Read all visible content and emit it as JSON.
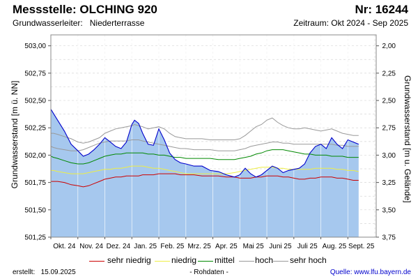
{
  "header": {
    "station": "Messstelle: OLCHING 920",
    "number": "Nr: 16244",
    "aquifer_label": "Grundwasserleiter:",
    "aquifer_value": "Niederterrasse",
    "period": "Zeitraum: Okt 2024 - Sep 2025"
  },
  "footer": {
    "created_label": "erstellt:",
    "created_date": "15.09.2025",
    "raw_data": "- Rohdaten -",
    "source_label": "Quelle:",
    "source_url": "www.lfu.bayern.de"
  },
  "colors": {
    "measured_fill": "#a6c8ee",
    "measured_line": "#0000cc",
    "sehr_niedrig": "#cc0000",
    "niedrig": "#eeee44",
    "mittel": "#008800",
    "hoch": "#999999",
    "sehr_hoch": "#999999"
  },
  "chart_data": {
    "type": "area",
    "ylabel": "Grundwasserstand [m ü. NN]",
    "ylabel_right": "Grundwasserstand [m u. Gelände]",
    "ylim": [
      501.25,
      503.1
    ],
    "yticks": [
      "503,00",
      "502,75",
      "502,50",
      "502,25",
      "502,00",
      "501,75",
      "501,50",
      "501,25"
    ],
    "yticks_values": [
      503.0,
      502.75,
      502.5,
      502.25,
      502.0,
      501.75,
      501.5,
      501.25
    ],
    "right_axis_reference": 505.0,
    "yticks_right": [
      "2,00",
      "2,25",
      "2,50",
      "2,75",
      "3,00",
      "3,25",
      "3,50",
      "3,75"
    ],
    "yticks_right_values": [
      2.0,
      2.25,
      2.5,
      2.75,
      3.0,
      3.25,
      3.5,
      3.75
    ],
    "xticks": [
      "Okt. 24",
      "Nov. 24",
      "Dez. 24",
      "Jan. 25",
      "Feb. 25",
      "Mrz. 25",
      "Apr. 25",
      "Mai 25",
      "Juni 25",
      "Juli 25",
      "Aug. 25",
      "Sept. 25"
    ],
    "grid": true,
    "legend_position": "bottom",
    "legend": [
      "sehr niedrig",
      "niedrig",
      "mittel",
      "hoch",
      "sehr hoch"
    ],
    "x": [
      0,
      0.1,
      0.25,
      0.5,
      0.75,
      1.0,
      1.2,
      1.4,
      1.6,
      1.8,
      2.0,
      2.2,
      2.4,
      2.6,
      2.8,
      3.0,
      3.1,
      3.25,
      3.4,
      3.6,
      3.8,
      4.0,
      4.2,
      4.4,
      4.6,
      4.8,
      5.0,
      5.3,
      5.6,
      5.9,
      6.2,
      6.5,
      6.8,
      7.0,
      7.2,
      7.4,
      7.6,
      7.8,
      8.0,
      8.2,
      8.4,
      8.6,
      8.8,
      9.0,
      9.2,
      9.4,
      9.6,
      9.8,
      10.0,
      10.2,
      10.4,
      10.6,
      10.8,
      11.0,
      11.2,
      11.4
    ],
    "series": [
      {
        "name": "",
        "key": "measured",
        "values": [
          502.42,
          502.38,
          502.32,
          502.22,
          502.1,
          502.04,
          501.99,
          502.01,
          502.05,
          502.1,
          502.16,
          502.12,
          502.08,
          502.06,
          502.12,
          502.28,
          502.32,
          502.29,
          502.2,
          502.1,
          502.09,
          502.24,
          502.14,
          502.02,
          501.96,
          501.93,
          501.92,
          501.9,
          501.9,
          501.86,
          501.85,
          501.82,
          501.8,
          501.82,
          501.88,
          501.83,
          501.8,
          501.82,
          501.86,
          501.9,
          501.88,
          501.84,
          501.86,
          501.87,
          501.88,
          501.92,
          502.02,
          502.08,
          502.1,
          502.06,
          502.16,
          502.1,
          502.06,
          502.14,
          502.12,
          502.1
        ]
      },
      {
        "name": "sehr niedrig",
        "key": "sehr_niedrig",
        "values": [
          501.76,
          501.76,
          501.76,
          501.75,
          501.73,
          501.72,
          501.71,
          501.72,
          501.74,
          501.76,
          501.78,
          501.79,
          501.8,
          501.8,
          501.81,
          501.81,
          501.81,
          501.81,
          501.82,
          501.82,
          501.82,
          501.83,
          501.83,
          501.83,
          501.83,
          501.82,
          501.82,
          501.82,
          501.81,
          501.81,
          501.81,
          501.8,
          501.8,
          501.79,
          501.79,
          501.79,
          501.8,
          501.8,
          501.81,
          501.81,
          501.81,
          501.8,
          501.8,
          501.79,
          501.78,
          501.78,
          501.79,
          501.79,
          501.8,
          501.8,
          501.8,
          501.79,
          501.79,
          501.78,
          501.77,
          501.77
        ]
      },
      {
        "name": "niedrig",
        "key": "niedrig",
        "values": [
          501.86,
          501.86,
          501.85,
          501.84,
          501.83,
          501.83,
          501.83,
          501.84,
          501.85,
          501.86,
          501.87,
          501.87,
          501.88,
          501.88,
          501.89,
          501.9,
          501.9,
          501.9,
          501.9,
          501.89,
          501.88,
          501.88,
          501.87,
          501.86,
          501.85,
          501.84,
          501.83,
          501.83,
          501.83,
          501.83,
          501.83,
          501.83,
          501.84,
          501.85,
          501.86,
          501.87,
          501.88,
          501.89,
          501.89,
          501.89,
          501.88,
          501.88,
          501.87,
          501.87,
          501.87,
          501.87,
          501.87,
          501.88,
          501.88,
          501.88,
          501.88,
          501.87,
          501.87,
          501.86,
          501.86,
          501.85
        ]
      },
      {
        "name": "mittel",
        "key": "mittel",
        "values": [
          501.99,
          501.98,
          501.97,
          501.95,
          501.93,
          501.92,
          501.92,
          501.93,
          501.95,
          501.97,
          501.99,
          502.0,
          502.01,
          502.01,
          502.02,
          502.02,
          502.02,
          502.02,
          502.02,
          502.01,
          502.01,
          502.0,
          502.0,
          501.99,
          501.98,
          501.98,
          501.97,
          501.97,
          501.97,
          501.97,
          501.96,
          501.96,
          501.96,
          501.97,
          501.98,
          501.99,
          502.01,
          502.02,
          502.04,
          502.05,
          502.05,
          502.05,
          502.04,
          502.03,
          502.02,
          502.01,
          502.01,
          502.0,
          502.0,
          502.0,
          501.99,
          501.99,
          501.99,
          501.98,
          501.98,
          501.98
        ]
      },
      {
        "name": "hoch",
        "key": "hoch",
        "values": [
          502.08,
          502.07,
          502.06,
          502.05,
          502.04,
          502.04,
          502.05,
          502.07,
          502.09,
          502.11,
          502.12,
          502.13,
          502.13,
          502.13,
          502.13,
          502.14,
          502.14,
          502.14,
          502.13,
          502.12,
          502.11,
          502.1,
          502.09,
          502.08,
          502.07,
          502.06,
          502.06,
          502.05,
          502.05,
          502.05,
          502.04,
          502.04,
          502.04,
          502.05,
          502.06,
          502.08,
          502.09,
          502.1,
          502.11,
          502.12,
          502.12,
          502.11,
          502.11,
          502.1,
          502.1,
          502.1,
          502.1,
          502.1,
          502.1,
          502.1,
          502.1,
          502.09,
          502.09,
          502.08,
          502.08,
          502.08
        ]
      },
      {
        "name": "sehr hoch",
        "key": "sehr_hoch",
        "values": [
          502.2,
          502.2,
          502.19,
          502.17,
          502.15,
          502.12,
          502.11,
          502.12,
          502.14,
          502.16,
          502.2,
          502.22,
          502.24,
          502.25,
          502.26,
          502.27,
          502.28,
          502.27,
          502.26,
          502.24,
          502.25,
          502.26,
          502.24,
          502.2,
          502.17,
          502.16,
          502.15,
          502.15,
          502.15,
          502.14,
          502.14,
          502.14,
          502.14,
          502.15,
          502.18,
          502.22,
          502.26,
          502.28,
          502.32,
          502.34,
          502.3,
          502.27,
          502.25,
          502.24,
          502.24,
          502.25,
          502.24,
          502.23,
          502.22,
          502.23,
          502.24,
          502.22,
          502.2,
          502.19,
          502.18,
          502.18
        ]
      }
    ]
  }
}
